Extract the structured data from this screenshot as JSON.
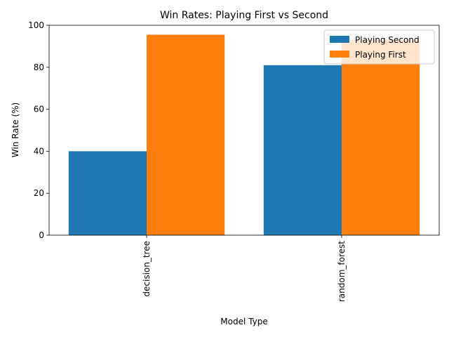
{
  "chart_data": {
    "type": "bar",
    "title": "Win Rates: Playing First vs Second",
    "xlabel": "Model Type",
    "ylabel": "Win Rate (%)",
    "categories": [
      "decision_tree",
      "random_forest"
    ],
    "series": [
      {
        "name": "Playing Second",
        "color": "#1f77b4",
        "values": [
          40.0,
          81.0
        ]
      },
      {
        "name": "Playing First",
        "color": "#ff7f0e",
        "values": [
          95.5,
          93.0
        ]
      }
    ],
    "ylim": [
      0,
      100
    ],
    "yticks": [
      0,
      20,
      40,
      60,
      80,
      100
    ],
    "grid": false,
    "legend_position": "top-right"
  }
}
